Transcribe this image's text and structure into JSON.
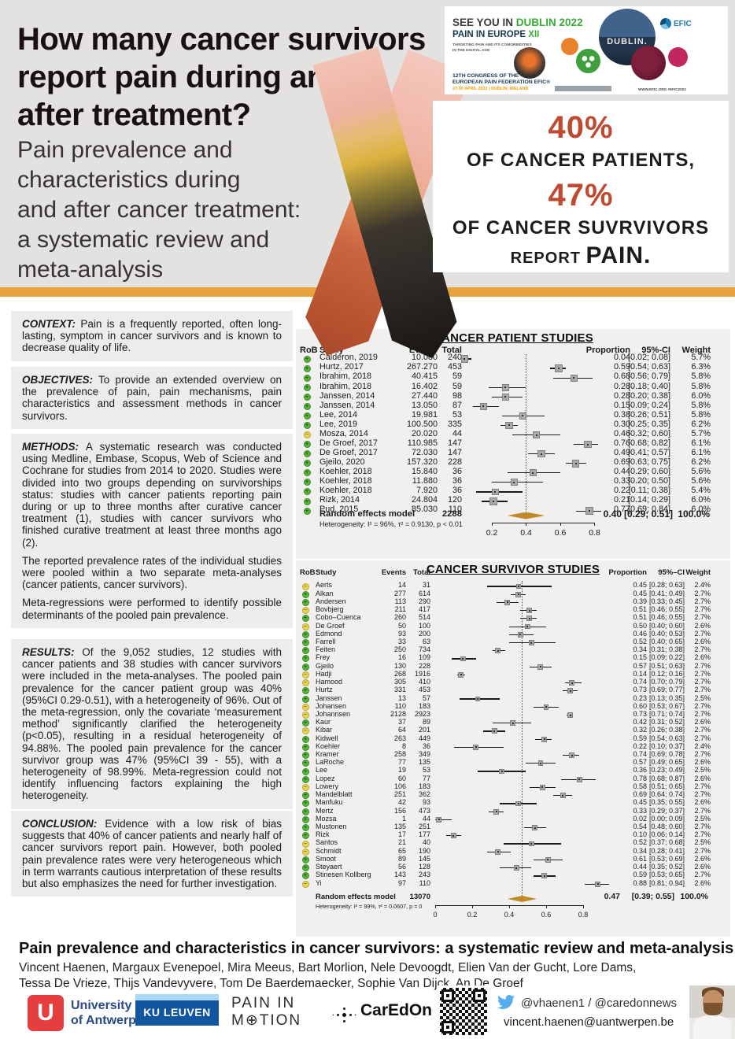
{
  "header": {
    "title_l1": "How many cancer survivors",
    "title_l2_pre": "report ",
    "title_l2_bold": "pain",
    "title_l2_post": " during and",
    "title_l3": "after treatment?",
    "subtitle_l1": "Pain prevalence and",
    "subtitle_l2": "characteristics during",
    "subtitle_l3": "and after cancer treatment:",
    "subtitle_l4": "a systematic review and",
    "subtitle_l5": "meta-analysis"
  },
  "banner": {
    "see_you": "SEE YOU IN",
    "dublin_2022": "DUBLIN 2022",
    "pain_in_europe": "PAIN IN EUROPE",
    "xii": "XII",
    "tagline_1": "TARGETING PAIN AND ITS COMORBIDITIES",
    "tagline_2": "IN THE DIGITAL AGE",
    "congress_1": "12TH CONGRESS OF THE",
    "congress_2": "EUROPEAN PAIN FEDERATION EFIC®",
    "dates": "27-30 APRIL 2022 | DUBLIN, IRELAND",
    "efic": "EFIC",
    "dublin_circle": "DUBLIN.",
    "web": "WWW.EFIC.ORG",
    "hashtag": "#EFIC2022"
  },
  "stats_box": {
    "pct_patients": "40%",
    "of_patients": "OF CANCER PATIENTS,",
    "pct_survivors": "47%",
    "of_survivors": "OF CANCER SUVRVIVORS",
    "report": "REPORT",
    "pain": "PAIN."
  },
  "abstract": {
    "context": {
      "label": "CONTEXT:",
      "text": "Pain is a frequently reported, often long-lasting, symptom in cancer survivors and is known to decrease quality of life."
    },
    "objectives": {
      "label": "OBJECTIVES:",
      "text": "To provide an extended overview on the prevalence of pain, pain mechanisms, pain characteristics and assessment methods  in cancer survivors."
    },
    "methods": {
      "label": "METHODS:",
      "p1": "A systematic research was conducted using Medline, Embase, Scopus, Web of Science and Cochrane for studies from 2014 to 2020. Studies were divided into two groups depending on survivorships status: studies with cancer patients reporting pain during or up to three months after curative cancer treatment (1), studies with cancer survivors who finished curative treatment at least three months ago (2).",
      "p2": "The reported prevalence rates of the individual studies were pooled within a two separate meta-analyses (cancer patients, cancer survivors).",
      "p3": "Meta-regressions were performed to identify possible determinants of the pooled pain prevalence."
    },
    "results": {
      "label": "RESULTS:",
      "text": "Of the 9,052 studies, 12 studies with cancer patients and 38 studies with cancer survivors were included in the meta-analyses. The pooled pain prevalence for the cancer patient group was 40% (95%CI 0.29-0.51), with a heterogeneity of 96%. Out of the meta-regression, only the covariate ‘measurement method’ significantly clarified the heterogeneity (p<0.05), resulting in a residual heterogeneity of 94.88%. The pooled pain prevalence for the cancer survivor group was 47% (95%CI 39 - 55), with a heterogeneity of 98.99%. Meta-regression could not identify influencing factors explaining the high heterogeneity."
    },
    "conclusion": {
      "label": "CONCLUSION:",
      "text": "Evidence with a low risk of bias suggests that 40% of cancer patients and nearly half of cancer survivors report pain. However, both pooled pain prevalence rates were very heterogeneous which in term warrants cautious interpretation of these results but also emphasizes the need for further investigation."
    }
  },
  "chart_data": [
    {
      "type": "forest",
      "title": "CANCER PATIENT STUDIES",
      "columns": {
        "rob": "RoB",
        "study": "Study",
        "events": "Events",
        "total": "Total",
        "proportion": "Proportion",
        "ci": "95%-CI",
        "weight": "Weight"
      },
      "axis_ticks": [
        0.2,
        0.4,
        0.6,
        0.8
      ],
      "xlim": [
        0,
        0.95
      ],
      "studies": [
        {
          "r": "+",
          "s": "Calderon, 2019",
          "e": "10.080",
          "n": "240",
          "p": 0.04,
          "lo": 0.02,
          "hi": 0.08,
          "ci": "[0.02; 0.08]",
          "w": "5.7%"
        },
        {
          "r": "+",
          "s": "Hurtz, 2017",
          "e": "267.270",
          "n": "453",
          "p": 0.59,
          "lo": 0.54,
          "hi": 0.63,
          "ci": "[0.54; 0.63]",
          "w": "6.3%"
        },
        {
          "r": "+",
          "s": "Ibrahim, 2018",
          "e": "40.415",
          "n": "59",
          "p": 0.68,
          "lo": 0.56,
          "hi": 0.79,
          "ci": "[0.56; 0.79]",
          "w": "5.8%"
        },
        {
          "r": "+",
          "s": "Ibrahim, 2018",
          "e": "16.402",
          "n": "59",
          "p": 0.28,
          "lo": 0.18,
          "hi": 0.4,
          "ci": "[0.18; 0.40]",
          "w": "5.8%"
        },
        {
          "r": "+",
          "s": "Janssen, 2014",
          "e": "27.440",
          "n": "98",
          "p": 0.28,
          "lo": 0.2,
          "hi": 0.38,
          "ci": "[0.20; 0.38]",
          "w": "6.0%"
        },
        {
          "r": "+",
          "s": "Janssen, 2014",
          "e": "13.050",
          "n": "87",
          "p": 0.15,
          "lo": 0.09,
          "hi": 0.24,
          "ci": "[0.09; 0.24]",
          "w": "5.8%"
        },
        {
          "r": "+",
          "s": "Lee, 2014",
          "e": "19.981",
          "n": "53",
          "p": 0.38,
          "lo": 0.26,
          "hi": 0.51,
          "ci": "[0.26; 0.51]",
          "w": "5.8%"
        },
        {
          "r": "+",
          "s": "Lee, 2019",
          "e": "100.500",
          "n": "335",
          "p": 0.3,
          "lo": 0.25,
          "hi": 0.35,
          "ci": "[0.25; 0.35]",
          "w": "6.2%"
        },
        {
          "r": "-",
          "s": "Mosza, 2014",
          "e": "20.020",
          "n": "44",
          "p": 0.46,
          "lo": 0.32,
          "hi": 0.6,
          "ci": "[0.32; 0.60]",
          "w": "5.7%"
        },
        {
          "r": "+",
          "s": "De Groef, 2017",
          "e": "110.985",
          "n": "147",
          "p": 0.76,
          "lo": 0.68,
          "hi": 0.82,
          "ci": "[0.68; 0.82]",
          "w": "6.1%"
        },
        {
          "r": "+",
          "s": "De Groef, 2017",
          "e": "72.030",
          "n": "147",
          "p": 0.49,
          "lo": 0.41,
          "hi": 0.57,
          "ci": "[0.41; 0.57]",
          "w": "6.1%"
        },
        {
          "r": "+",
          "s": "Gjeilo, 2020",
          "e": "157.320",
          "n": "228",
          "p": 0.69,
          "lo": 0.63,
          "hi": 0.75,
          "ci": "[0.63; 0.75]",
          "w": "6.2%"
        },
        {
          "r": "+",
          "s": "Koehler, 2018",
          "e": "15.840",
          "n": "36",
          "p": 0.44,
          "lo": 0.29,
          "hi": 0.6,
          "ci": "[0.29; 0.60]",
          "w": "5.6%"
        },
        {
          "r": "+",
          "s": "Koehler, 2018",
          "e": "11.880",
          "n": "36",
          "p": 0.33,
          "lo": 0.2,
          "hi": 0.5,
          "ci": "[0.20; 0.50]",
          "w": "5.6%"
        },
        {
          "r": "+",
          "s": "Koehler, 2018",
          "e": "7.920",
          "n": "36",
          "p": 0.22,
          "lo": 0.11,
          "hi": 0.38,
          "ci": "[0.11; 0.38]",
          "w": "5.4%"
        },
        {
          "r": "+",
          "s": "Rizk, 2014",
          "e": "24.804",
          "n": "120",
          "p": 0.21,
          "lo": 0.14,
          "hi": 0.29,
          "ci": "[0.14; 0.29]",
          "w": "6.0%"
        },
        {
          "r": "+",
          "s": "Pud, 2015",
          "e": "85.030",
          "n": "110",
          "p": 0.77,
          "lo": 0.69,
          "hi": 0.84,
          "ci": "[0.69; 0.84]",
          "w": "6.0%"
        }
      ],
      "pooled": {
        "label": "Random effects model",
        "total": "2288",
        "p": 0.4,
        "lo": 0.29,
        "hi": 0.51,
        "proportion": "0.40",
        "ci": "[0.29; 0.51]",
        "weight": "100.0%"
      },
      "heterogeneity": "Heterogeneity: I² = 96%, τ² = 0.9130, p < 0.01"
    },
    {
      "type": "forest",
      "title": "CANCER SURVIVOR STUDIES",
      "columns": {
        "rob": "RoB",
        "study": "Study",
        "events": "Events",
        "total": "Total",
        "proportion": "Proportion",
        "ci": "95%–CI",
        "weight": "Weight"
      },
      "axis_ticks": [
        0,
        0.2,
        0.4,
        0.6,
        0.8
      ],
      "xlim": [
        0,
        0.95
      ],
      "studies": [
        {
          "r": "-",
          "s": "Aerts",
          "e": "14",
          "n": "31",
          "p": 0.45,
          "lo": 0.28,
          "hi": 0.63,
          "ci": "[0.28; 0.63]",
          "w": "2.4%"
        },
        {
          "r": "+",
          "s": "Alkan",
          "e": "277",
          "n": "614",
          "p": 0.45,
          "lo": 0.41,
          "hi": 0.49,
          "ci": "[0.41; 0.49]",
          "w": "2.7%"
        },
        {
          "r": "+",
          "s": "Andersen",
          "e": "113",
          "n": "290",
          "p": 0.39,
          "lo": 0.33,
          "hi": 0.45,
          "ci": "[0.33; 0.45]",
          "w": "2.7%"
        },
        {
          "r": "-",
          "s": "Bovbjerg",
          "e": "211",
          "n": "417",
          "p": 0.51,
          "lo": 0.46,
          "hi": 0.55,
          "ci": "[0.46; 0.55]",
          "w": "2.7%"
        },
        {
          "r": "+",
          "s": "Cobo–Cuenca",
          "e": "260",
          "n": "514",
          "p": 0.51,
          "lo": 0.46,
          "hi": 0.55,
          "ci": "[0.46; 0.55]",
          "w": "2.7%"
        },
        {
          "r": "-",
          "s": "De Groef",
          "e": "50",
          "n": "100",
          "p": 0.5,
          "lo": 0.4,
          "hi": 0.6,
          "ci": "[0.40; 0.60]",
          "w": "2.6%"
        },
        {
          "r": "+",
          "s": "Edmond",
          "e": "93",
          "n": "200",
          "p": 0.46,
          "lo": 0.4,
          "hi": 0.53,
          "ci": "[0.40; 0.53]",
          "w": "2.7%"
        },
        {
          "r": "+",
          "s": "Farrell",
          "e": "33",
          "n": "63",
          "p": 0.52,
          "lo": 0.4,
          "hi": 0.65,
          "ci": "[0.40; 0.65]",
          "w": "2.6%"
        },
        {
          "r": "+",
          "s": "Feiten",
          "e": "250",
          "n": "734",
          "p": 0.34,
          "lo": 0.31,
          "hi": 0.38,
          "ci": "[0.31; 0.38]",
          "w": "2.7%"
        },
        {
          "r": "+",
          "s": "Frey",
          "e": "16",
          "n": "109",
          "p": 0.15,
          "lo": 0.09,
          "hi": 0.22,
          "ci": "[0.09; 0.22]",
          "w": "2.6%"
        },
        {
          "r": "+",
          "s": "Gjeilo",
          "e": "130",
          "n": "228",
          "p": 0.57,
          "lo": 0.51,
          "hi": 0.63,
          "ci": "[0.51; 0.63]",
          "w": "2.7%"
        },
        {
          "r": "-",
          "s": "Hadji",
          "e": "268",
          "n": "1916",
          "p": 0.14,
          "lo": 0.12,
          "hi": 0.16,
          "ci": "[0.12; 0.16]",
          "w": "2.7%"
        },
        {
          "r": "-",
          "s": "Hamood",
          "e": "305",
          "n": "410",
          "p": 0.74,
          "lo": 0.7,
          "hi": 0.79,
          "ci": "[0.70; 0.79]",
          "w": "2.7%"
        },
        {
          "r": "+",
          "s": "Hurtz",
          "e": "331",
          "n": "453",
          "p": 0.73,
          "lo": 0.69,
          "hi": 0.77,
          "ci": "[0.69; 0.77]",
          "w": "2.7%"
        },
        {
          "r": "+",
          "s": "Janssen",
          "e": "13",
          "n": "57",
          "p": 0.23,
          "lo": 0.13,
          "hi": 0.35,
          "ci": "[0.13; 0.35]",
          "w": "2.5%"
        },
        {
          "r": "-",
          "s": "Johansen",
          "e": "110",
          "n": "183",
          "p": 0.6,
          "lo": 0.53,
          "hi": 0.67,
          "ci": "[0.53; 0.67]",
          "w": "2.7%"
        },
        {
          "r": "-",
          "s": "Johannsen",
          "e": "2128",
          "n": "2923",
          "p": 0.73,
          "lo": 0.71,
          "hi": 0.74,
          "ci": "[0.71; 0.74]",
          "w": "2.7%"
        },
        {
          "r": "+",
          "s": "Kaur",
          "e": "37",
          "n": "89",
          "p": 0.42,
          "lo": 0.31,
          "hi": 0.52,
          "ci": "[0.31; 0.52]",
          "w": "2.6%"
        },
        {
          "r": "-",
          "s": "Kibar",
          "e": "64",
          "n": "201",
          "p": 0.32,
          "lo": 0.26,
          "hi": 0.38,
          "ci": "[0.26; 0.38]",
          "w": "2.7%"
        },
        {
          "r": "+",
          "s": "Kidwell",
          "e": "263",
          "n": "449",
          "p": 0.59,
          "lo": 0.54,
          "hi": 0.63,
          "ci": "[0.54; 0.63]",
          "w": "2.7%"
        },
        {
          "r": "+",
          "s": "Koehler",
          "e": "8",
          "n": "36",
          "p": 0.22,
          "lo": 0.1,
          "hi": 0.37,
          "ci": "[0.10; 0.37]",
          "w": "2.4%"
        },
        {
          "r": "+",
          "s": "Kramer",
          "e": "258",
          "n": "349",
          "p": 0.74,
          "lo": 0.69,
          "hi": 0.78,
          "ci": "[0.69; 0.78]",
          "w": "2.7%"
        },
        {
          "r": "+",
          "s": "LaRoche",
          "e": "77",
          "n": "135",
          "p": 0.57,
          "lo": 0.49,
          "hi": 0.65,
          "ci": "[0.49; 0.65]",
          "w": "2.6%"
        },
        {
          "r": "+",
          "s": "Lee",
          "e": "19",
          "n": "53",
          "p": 0.36,
          "lo": 0.23,
          "hi": 0.49,
          "ci": "[0.23; 0.49]",
          "w": "2.5%"
        },
        {
          "r": "+",
          "s": "Lopez",
          "e": "60",
          "n": "77",
          "p": 0.78,
          "lo": 0.68,
          "hi": 0.87,
          "ci": "[0.68; 0.87]",
          "w": "2.6%"
        },
        {
          "r": "-",
          "s": "Lowery",
          "e": "106",
          "n": "183",
          "p": 0.58,
          "lo": 0.51,
          "hi": 0.65,
          "ci": "[0.51; 0.65]",
          "w": "2.7%"
        },
        {
          "r": "+",
          "s": "Mandelblatt",
          "e": "251",
          "n": "362",
          "p": 0.69,
          "lo": 0.64,
          "hi": 0.74,
          "ci": "[0.64; 0.74]",
          "w": "2.7%"
        },
        {
          "r": "+",
          "s": "Manfuku",
          "e": "42",
          "n": "93",
          "p": 0.45,
          "lo": 0.35,
          "hi": 0.55,
          "ci": "[0.35; 0.55]",
          "w": "2.6%"
        },
        {
          "r": "+",
          "s": "Mertz",
          "e": "156",
          "n": "473",
          "p": 0.33,
          "lo": 0.29,
          "hi": 0.37,
          "ci": "[0.29; 0.37]",
          "w": "2.7%"
        },
        {
          "r": "+",
          "s": "Mozsa",
          "e": "1",
          "n": "44",
          "p": 0.02,
          "lo": 0.0,
          "hi": 0.09,
          "ci": "[0.00; 0.09]",
          "w": "2.5%"
        },
        {
          "r": "+",
          "s": "Mustonen",
          "e": "135",
          "n": "251",
          "p": 0.54,
          "lo": 0.48,
          "hi": 0.6,
          "ci": "[0.48; 0.60]",
          "w": "2.7%"
        },
        {
          "r": "+",
          "s": "Rizk",
          "e": "17",
          "n": "177",
          "p": 0.1,
          "lo": 0.06,
          "hi": 0.14,
          "ci": "[0.06; 0.14]",
          "w": "2.7%"
        },
        {
          "r": "-",
          "s": "Santos",
          "e": "21",
          "n": "40",
          "p": 0.52,
          "lo": 0.37,
          "hi": 0.68,
          "ci": "[0.37; 0.68]",
          "w": "2.5%"
        },
        {
          "r": "-",
          "s": "Schmidt",
          "e": "65",
          "n": "190",
          "p": 0.34,
          "lo": 0.28,
          "hi": 0.41,
          "ci": "[0.28; 0.41]",
          "w": "2.7%"
        },
        {
          "r": "+",
          "s": "Smoot",
          "e": "89",
          "n": "145",
          "p": 0.61,
          "lo": 0.53,
          "hi": 0.69,
          "ci": "[0.53; 0.69]",
          "w": "2.6%"
        },
        {
          "r": "+",
          "s": "Steyaert",
          "e": "56",
          "n": "128",
          "p": 0.44,
          "lo": 0.35,
          "hi": 0.52,
          "ci": "[0.35; 0.52]",
          "w": "2.6%"
        },
        {
          "r": "+",
          "s": "Stinesen Kollberg",
          "e": "143",
          "n": "243",
          "p": 0.59,
          "lo": 0.53,
          "hi": 0.65,
          "ci": "[0.53; 0.65]",
          "w": "2.7%"
        },
        {
          "r": "-",
          "s": "Yi",
          "e": "97",
          "n": "110",
          "p": 0.88,
          "lo": 0.81,
          "hi": 0.94,
          "ci": "[0.81; 0.94]",
          "w": "2.6%"
        }
      ],
      "pooled": {
        "label": "Random effects model",
        "total": "13070",
        "p": 0.47,
        "lo": 0.39,
        "hi": 0.55,
        "proportion": "0.47",
        "ci": "[0.39; 0.55]",
        "weight": "100.0%"
      },
      "heterogeneity": "Heterogeneity: I² = 99%, τ² = 0.0607, p = 0"
    }
  ],
  "footer": {
    "title": "Pain prevalence and characteristics in cancer survivors: a systematic review and meta-analysis",
    "authors_1": "Vincent Haenen, Margaux Evenepoel, Mira Meeus, Bart Morlion, Nele Devoogdt, Elien Van der Gucht, Lore Dams,",
    "authors_2": "Tessa De Vrieze, Thijs Vandevyvere, Tom De Baerdemaecker, Sophie Van Dijck, An De Groef",
    "uantwerp_glyph": "U",
    "uantwerp_1": "University",
    "uantwerp_2": "of Antwerp",
    "kuleuven": "KU LEUVEN",
    "pim_1": "PAIN IN",
    "pim_2": "M⊕TION",
    "caredon": "CarEdOn",
    "twitter": "@vhaenen1 / @caredonnews",
    "email": "vincent.haenen@uantwerpen.be"
  }
}
